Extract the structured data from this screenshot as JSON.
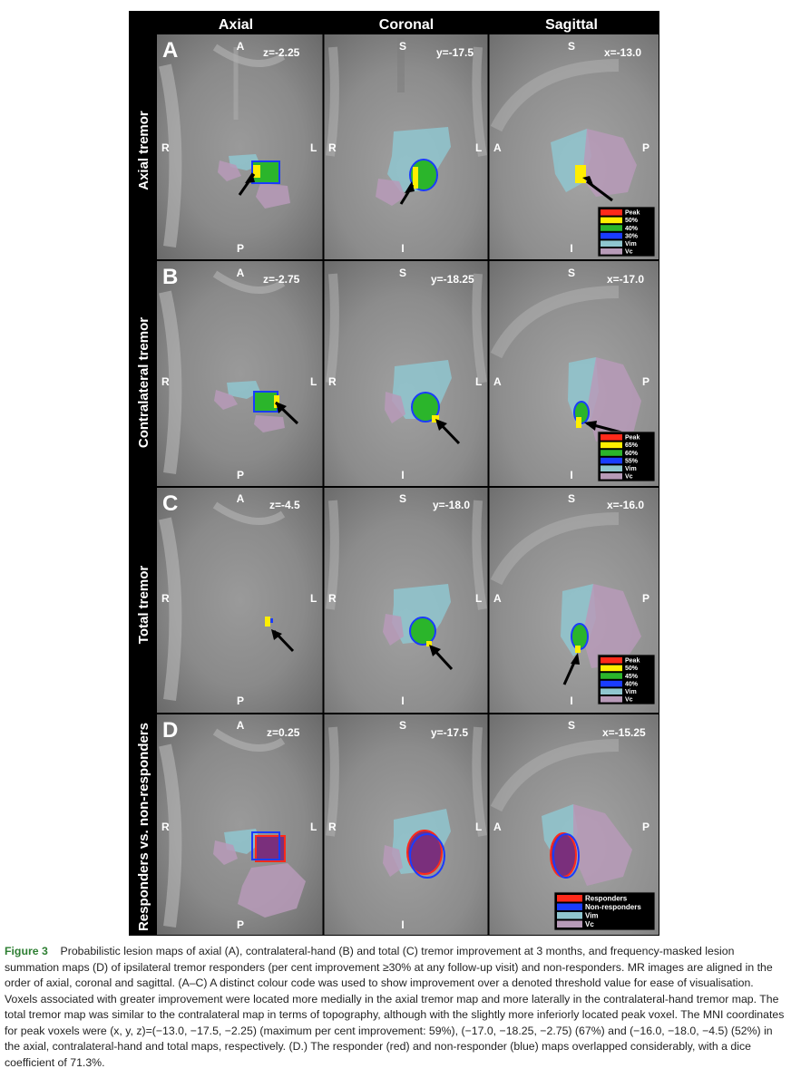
{
  "figure": {
    "columns": [
      "Axial",
      "Coronal",
      "Sagittal"
    ],
    "rows": [
      {
        "letter": "A",
        "title": "Axial tremor",
        "coords": [
          "z=-2.25",
          "y=-17.5",
          "x=-13.0"
        ],
        "legend": [
          "Peak",
          "50%",
          "40%",
          "30%",
          "Vim",
          "Vc"
        ]
      },
      {
        "letter": "B",
        "title": "Contralateral tremor",
        "coords": [
          "z=-2.75",
          "y=-18.25",
          "x=-17.0"
        ],
        "legend": [
          "Peak",
          "65%",
          "60%",
          "55%",
          "Vim",
          "Vc"
        ]
      },
      {
        "letter": "C",
        "title": "Total tremor",
        "coords": [
          "z=-4.5",
          "y=-18.0",
          "x=-16.0"
        ],
        "legend": [
          "Peak",
          "50%",
          "45%",
          "40%",
          "Vim",
          "Vc"
        ]
      },
      {
        "letter": "D",
        "title": "Responders vs. non-responders",
        "coords": [
          "z=0.25",
          "y=-17.5",
          "x=-15.25"
        ],
        "legend": [
          "Responders",
          "Non-responders",
          "Vim",
          "Vc"
        ]
      }
    ],
    "orientation": {
      "axial": {
        "top": "A",
        "bottom": "P",
        "left": "R",
        "right": "L"
      },
      "coronal": {
        "top": "S",
        "bottom": "I",
        "left": "R",
        "right": "L"
      },
      "sagittal": {
        "top": "S",
        "bottom": "I",
        "left": "A",
        "right": "P"
      }
    },
    "legend_colors": {
      "abc": [
        "#ff2a1a",
        "#ffee00",
        "#2bb52b",
        "#1a3cff",
        "#8fc6cf",
        "#b79ab8"
      ],
      "d": [
        "#ff2a1a",
        "#1a3cff",
        "#8fc6cf",
        "#b79ab8"
      ]
    }
  },
  "caption": {
    "label": "Figure 3",
    "text": "Probabilistic lesion maps of axial (A), contralateral-hand (B) and total (C) tremor improvement at 3 months, and frequency-masked lesion summation maps (D) of ipsilateral tremor responders (per cent improvement ≥30% at any follow-up visit) and non-responders. MR images are aligned in the order of axial, coronal and sagittal. (A–C) A distinct colour code was used to show improvement over a denoted threshold value for ease of visualisation. Voxels associated with greater improvement were located more medially in the axial tremor map and more laterally in the contralateral-hand tremor map. The total tremor map was similar to the contralateral map in terms of topography, although with the slightly more inferiorly located peak voxel. The MNI coordinates for peak voxels were (x, y, z)=(−13.0, −17.5, −2.25) (maximum per cent improvement: 59%), (−17.0, −18.25, −2.75) (67%) and (−16.0, −18.0, −4.5) (52%) in the axial, contralateral-hand and total maps, respectively. (D.) The responder (red) and non-responder (blue) maps overlapped considerably, with a dice coefficient of 71.3%."
  }
}
